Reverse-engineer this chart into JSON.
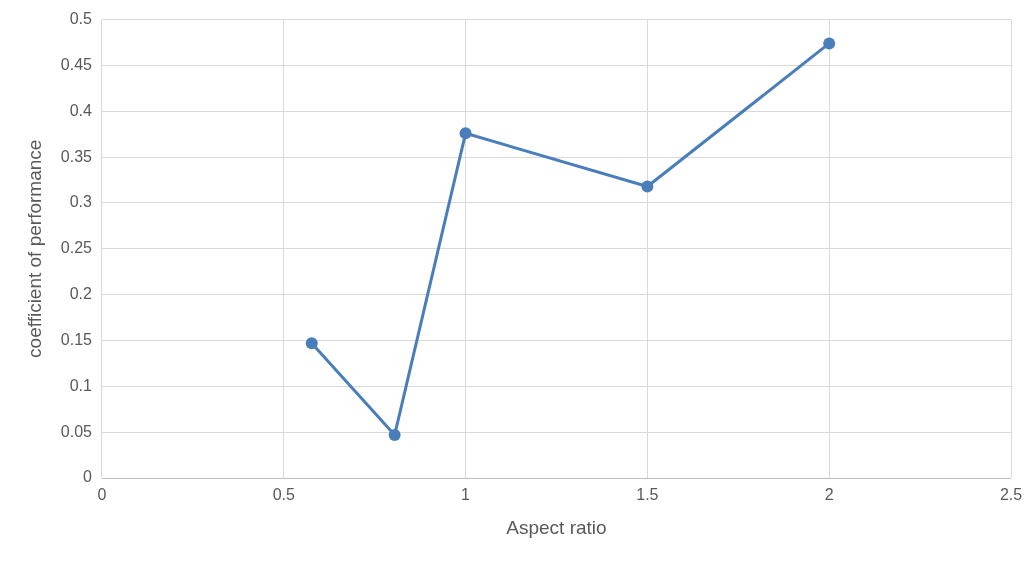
{
  "chart_data": {
    "type": "line",
    "xlabel": "Aspect ratio",
    "ylabel": "coefficient of performance",
    "x": [
      0.577,
      0.805,
      1,
      1.5,
      2
    ],
    "series": [
      {
        "color": "#4a7ebb",
        "values": [
          0.147,
          0.047,
          0.376,
          0.318,
          0.474
        ]
      }
    ],
    "xlim": [
      0,
      2.5
    ],
    "xticks": [
      0,
      0.5,
      1,
      1.5,
      2,
      2.5
    ],
    "ylim": [
      0,
      0.5
    ],
    "yticks": [
      0,
      0.05,
      0.1,
      0.15,
      0.2,
      0.25,
      0.3,
      0.35,
      0.4,
      0.45,
      0.5
    ],
    "grid": true,
    "marker": "circle",
    "line_style": "solid",
    "legend": false
  }
}
